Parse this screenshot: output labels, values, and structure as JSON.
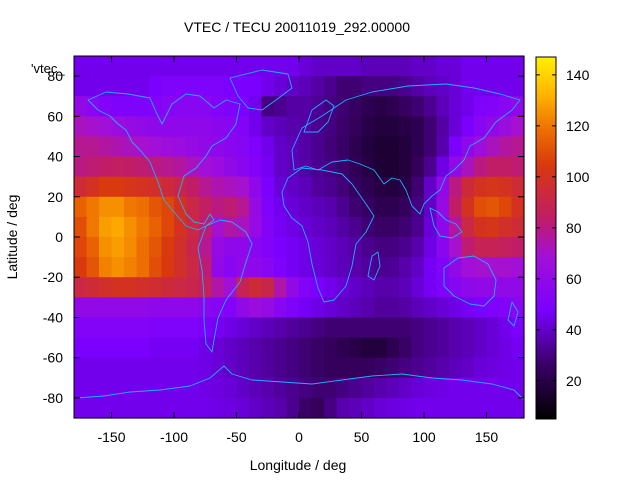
{
  "chart_data": {
    "type": "heatmap",
    "title": "VTEC / TECU 20011019_292.00000",
    "xlabel": "Longitude / deg",
    "ylabel": "Latitude / deg",
    "legend_key_label": "'vtec_",
    "xlim": [
      -180,
      180
    ],
    "ylim": [
      -90,
      90
    ],
    "xticks": [
      -150,
      -100,
      -50,
      0,
      50,
      100,
      150
    ],
    "yticks": [
      -80,
      -60,
      -40,
      -20,
      0,
      20,
      40,
      60,
      80
    ],
    "colorbar": {
      "range": [
        5,
        147
      ],
      "ticks": [
        20,
        40,
        60,
        80,
        100,
        120,
        140
      ],
      "palette": "black-purple-red-orange-yellow"
    },
    "grid": false,
    "lon_step": 10,
    "lat_step": 10,
    "lats": [
      85,
      75,
      65,
      55,
      45,
      35,
      25,
      15,
      5,
      -5,
      -15,
      -25,
      -35,
      -45,
      -55,
      -65,
      -75,
      -85
    ],
    "lons": [
      -175,
      -165,
      -155,
      -145,
      -135,
      -125,
      -115,
      -105,
      -95,
      -85,
      -75,
      -65,
      -55,
      -45,
      -35,
      -25,
      -15,
      -5,
      5,
      15,
      25,
      35,
      45,
      55,
      65,
      75,
      85,
      95,
      105,
      115,
      125,
      135,
      145,
      155,
      165,
      175
    ],
    "vtec_grid": [
      [
        45,
        45,
        45,
        45,
        45,
        45,
        45,
        45,
        45,
        45,
        45,
        45,
        45,
        45,
        45,
        45,
        45,
        45,
        42,
        40,
        40,
        40,
        40,
        38,
        38,
        38,
        38,
        40,
        40,
        42,
        42,
        45,
        45,
        45,
        45,
        45
      ],
      [
        45,
        45,
        45,
        45,
        45,
        45,
        48,
        50,
        50,
        50,
        50,
        50,
        48,
        48,
        48,
        45,
        42,
        40,
        38,
        35,
        32,
        28,
        28,
        30,
        30,
        30,
        32,
        35,
        38,
        40,
        42,
        45,
        45,
        45,
        45,
        45
      ],
      [
        60,
        55,
        52,
        50,
        50,
        50,
        52,
        55,
        55,
        55,
        55,
        52,
        50,
        48,
        45,
        30,
        32,
        35,
        35,
        33,
        30,
        28,
        25,
        22,
        20,
        22,
        25,
        28,
        32,
        38,
        42,
        45,
        50,
        52,
        55,
        58
      ],
      [
        72,
        70,
        68,
        65,
        62,
        60,
        58,
        58,
        58,
        58,
        58,
        56,
        55,
        52,
        45,
        40,
        38,
        36,
        35,
        32,
        30,
        27,
        24,
        20,
        18,
        18,
        20,
        22,
        28,
        35,
        42,
        48,
        55,
        60,
        65,
        70
      ],
      [
        78,
        78,
        76,
        74,
        72,
        70,
        68,
        66,
        64,
        62,
        60,
        58,
        56,
        54,
        50,
        45,
        40,
        38,
        35,
        32,
        29,
        26,
        22,
        18,
        16,
        16,
        18,
        22,
        28,
        36,
        48,
        58,
        66,
        72,
        76,
        78
      ],
      [
        80,
        82,
        84,
        85,
        84,
        82,
        80,
        78,
        76,
        72,
        68,
        64,
        60,
        56,
        52,
        46,
        40,
        38,
        35,
        32,
        30,
        27,
        23,
        19,
        16,
        16,
        18,
        24,
        32,
        44,
        60,
        72,
        80,
        84,
        84,
        82
      ],
      [
        95,
        100,
        105,
        105,
        102,
        100,
        98,
        94,
        90,
        84,
        78,
        74,
        72,
        70,
        58,
        48,
        42,
        40,
        38,
        34,
        32,
        29,
        25,
        22,
        19,
        18,
        20,
        28,
        40,
        60,
        80,
        94,
        100,
        102,
        100,
        95
      ],
      [
        115,
        120,
        125,
        125,
        120,
        118,
        112,
        108,
        100,
        92,
        85,
        80,
        82,
        78,
        62,
        50,
        45,
        42,
        40,
        38,
        36,
        32,
        28,
        25,
        22,
        22,
        24,
        30,
        40,
        62,
        84,
        100,
        110,
        112,
        108,
        100
      ],
      [
        110,
        120,
        128,
        130,
        125,
        120,
        115,
        108,
        100,
        92,
        82,
        70,
        75,
        72,
        62,
        52,
        46,
        44,
        42,
        40,
        38,
        35,
        32,
        28,
        26,
        26,
        28,
        32,
        42,
        58,
        76,
        92,
        100,
        102,
        98,
        95
      ],
      [
        108,
        115,
        125,
        128,
        124,
        118,
        112,
        105,
        98,
        90,
        78,
        62,
        58,
        58,
        55,
        52,
        48,
        46,
        44,
        42,
        40,
        38,
        35,
        32,
        30,
        30,
        32,
        36,
        44,
        56,
        70,
        82,
        88,
        88,
        86,
        84
      ],
      [
        105,
        112,
        122,
        125,
        122,
        118,
        110,
        104,
        98,
        92,
        82,
        60,
        55,
        60,
        58,
        55,
        50,
        46,
        44,
        42,
        40,
        38,
        36,
        34,
        32,
        33,
        36,
        40,
        46,
        52,
        60,
        68,
        70,
        70,
        70,
        68
      ],
      [
        92,
        95,
        98,
        100,
        100,
        98,
        96,
        94,
        92,
        90,
        86,
        75,
        68,
        88,
        95,
        90,
        75,
        60,
        52,
        48,
        45,
        42,
        40,
        38,
        36,
        36,
        38,
        42,
        46,
        50,
        54,
        58,
        60,
        60,
        60,
        60
      ],
      [
        60,
        60,
        60,
        60,
        60,
        60,
        58,
        58,
        58,
        58,
        56,
        54,
        52,
        60,
        65,
        62,
        55,
        50,
        46,
        44,
        42,
        40,
        38,
        36,
        34,
        34,
        35,
        38,
        40,
        42,
        44,
        46,
        48,
        50,
        52,
        55
      ],
      [
        52,
        52,
        52,
        52,
        52,
        52,
        50,
        50,
        50,
        50,
        48,
        46,
        44,
        42,
        40,
        38,
        36,
        34,
        32,
        30,
        28,
        28,
        28,
        28,
        28,
        28,
        28,
        30,
        32,
        34,
        36,
        38,
        40,
        42,
        45,
        48
      ],
      [
        48,
        48,
        48,
        48,
        48,
        48,
        46,
        46,
        46,
        46,
        44,
        42,
        40,
        38,
        36,
        34,
        32,
        30,
        28,
        26,
        24,
        22,
        20,
        18,
        18,
        22,
        26,
        30,
        32,
        34,
        36,
        38,
        40,
        42,
        44,
        46
      ],
      [
        45,
        45,
        45,
        45,
        45,
        45,
        45,
        45,
        45,
        45,
        44,
        42,
        40,
        38,
        36,
        34,
        32,
        30,
        28,
        26,
        24,
        24,
        24,
        24,
        26,
        28,
        30,
        32,
        34,
        36,
        38,
        40,
        42,
        43,
        44,
        45
      ],
      [
        45,
        45,
        45,
        45,
        45,
        45,
        45,
        45,
        45,
        45,
        44,
        43,
        42,
        40,
        38,
        36,
        34,
        32,
        30,
        28,
        28,
        30,
        32,
        34,
        36,
        38,
        40,
        42,
        43,
        44,
        45,
        45,
        45,
        45,
        45,
        45
      ],
      [
        45,
        45,
        45,
        45,
        45,
        45,
        45,
        45,
        45,
        45,
        45,
        44,
        43,
        42,
        40,
        38,
        36,
        32,
        26,
        24,
        30,
        36,
        38,
        40,
        42,
        43,
        44,
        45,
        45,
        45,
        45,
        45,
        45,
        45,
        45,
        45
      ]
    ]
  }
}
